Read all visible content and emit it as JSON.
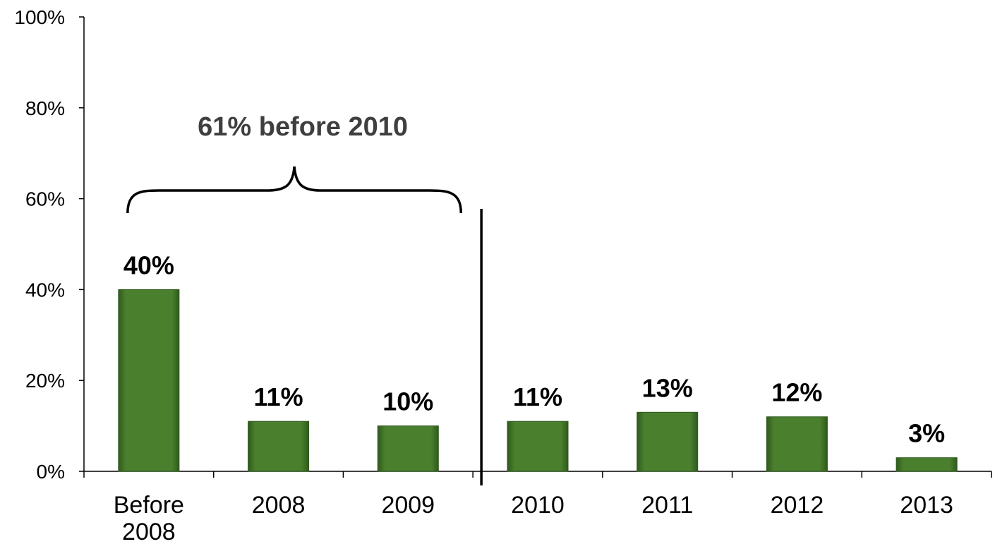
{
  "chart_data": {
    "type": "bar",
    "categories": [
      [
        "Before",
        "2008"
      ],
      [
        "2008"
      ],
      [
        "2009"
      ],
      [
        "2010"
      ],
      [
        "2011"
      ],
      [
        "2012"
      ],
      [
        "2013"
      ]
    ],
    "values": [
      40,
      11,
      10,
      11,
      13,
      12,
      3
    ],
    "data_labels": [
      "40%",
      "11%",
      "10%",
      "11%",
      "13%",
      "12%",
      "3%"
    ],
    "y_ticks": [
      "0%",
      "20%",
      "40%",
      "60%",
      "80%",
      "100%"
    ],
    "y_tick_values": [
      0,
      20,
      40,
      60,
      80,
      100
    ],
    "ylim": [
      0,
      100
    ],
    "title": "",
    "xlabel": "",
    "ylabel": "",
    "grid": false,
    "legend": "none",
    "annotation": {
      "text": "61% before 2010",
      "bracket_categories": [
        "Before 2008",
        "2009"
      ],
      "divider_after_category": "2009"
    },
    "colors": {
      "bar": "#4a7f2e",
      "bar_dark": "#2f5a1c",
      "annotation_text": "#3f3f3f"
    }
  }
}
